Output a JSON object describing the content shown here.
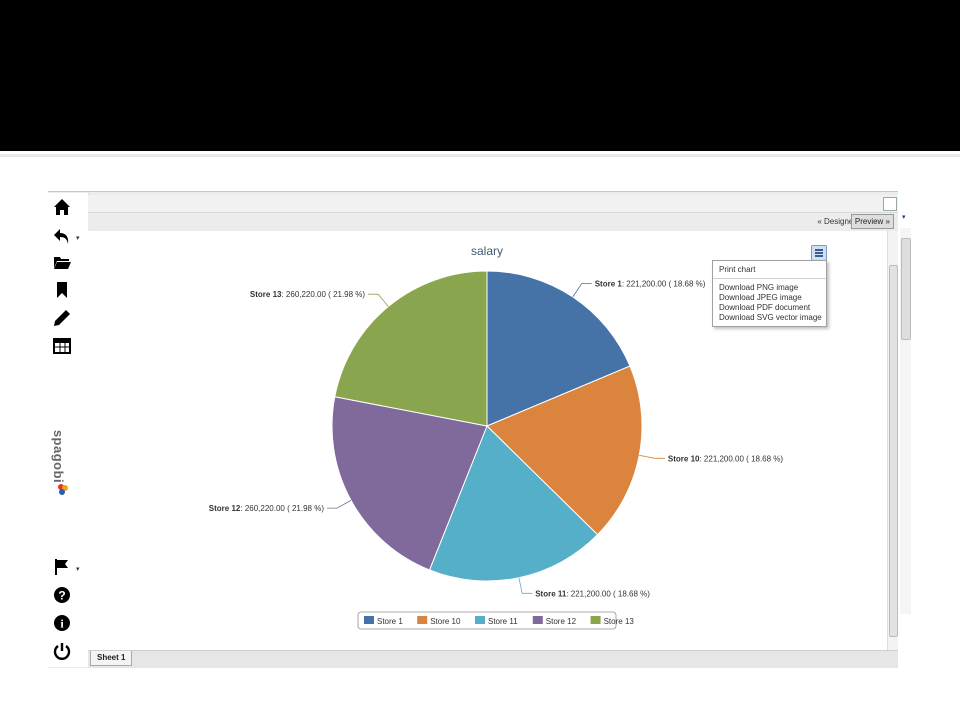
{
  "toolbar": {
    "designer_label": "« Designer",
    "preview_label": "Preview »"
  },
  "sidebar": {
    "logo_text": "spagobi"
  },
  "export_menu": {
    "items": [
      "Print chart",
      "Download PNG image",
      "Download JPEG image",
      "Download PDF document",
      "Download SVG vector image"
    ]
  },
  "sheet_tab": "Sheet 1",
  "chart_data": {
    "type": "pie",
    "title": "salary",
    "slices": [
      {
        "name": "Store 1",
        "value": 221200,
        "value_label": "221,200.00",
        "percent_label": "( 18.68 %)",
        "color": "#4572a7"
      },
      {
        "name": "Store 10",
        "value": 221200,
        "value_label": "221,200.00",
        "percent_label": "( 18.68 %)",
        "color": "#db843d"
      },
      {
        "name": "Store 11",
        "value": 221200,
        "value_label": "221,200.00",
        "percent_label": "( 18.68 %)",
        "color": "#56afc8"
      },
      {
        "name": "Store 12",
        "value": 260220,
        "value_label": "260,220.00",
        "percent_label": "( 21.98 %)",
        "color": "#80699b"
      },
      {
        "name": "Store 13",
        "value": 260220,
        "value_label": "260,220.00",
        "percent_label": "( 21.98 %)",
        "color": "#89a54e"
      }
    ],
    "legend": [
      "Store 1",
      "Store 10",
      "Store 11",
      "Store 12",
      "Store 13"
    ],
    "legend_position": "bottom-center"
  }
}
